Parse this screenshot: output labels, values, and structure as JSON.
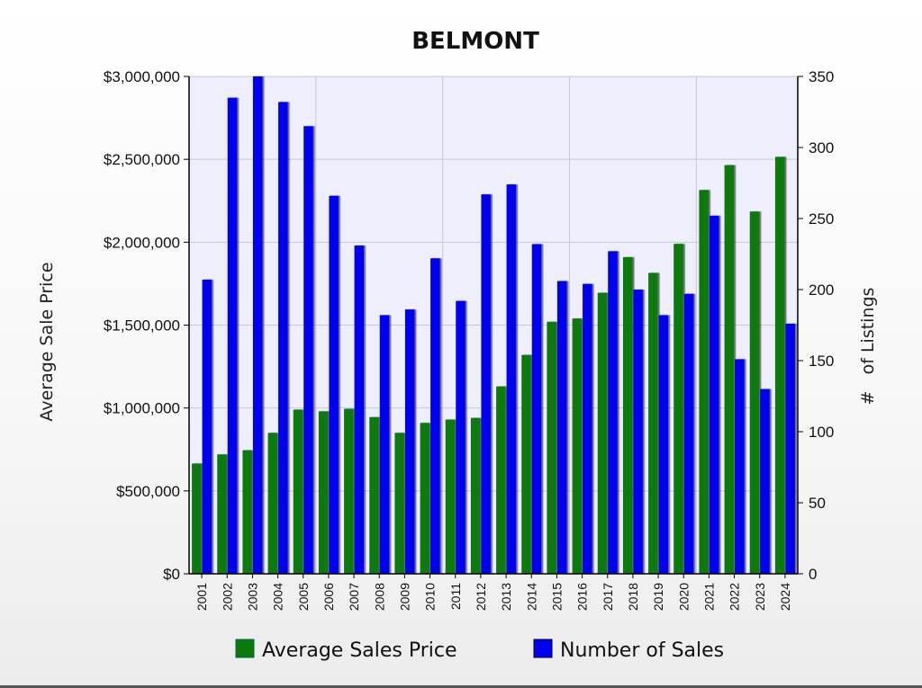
{
  "chart_data": {
    "type": "bar",
    "title": "BELMONT",
    "categories": [
      "2001",
      "2002",
      "2003",
      "2004",
      "2005",
      "2006",
      "2007",
      "2008",
      "2009",
      "2010",
      "2011",
      "2012",
      "2013",
      "2014",
      "2015",
      "2016",
      "2017",
      "2018",
      "2019",
      "2020",
      "2021",
      "2022",
      "2023",
      "2024"
    ],
    "series": [
      {
        "name": "Average Sales Price",
        "axis": "left",
        "color": "#0a7a0a",
        "values": [
          665000,
          720000,
          745000,
          850000,
          990000,
          980000,
          995000,
          945000,
          850000,
          910000,
          930000,
          940000,
          1130000,
          1320000,
          1520000,
          1540000,
          1695000,
          1910000,
          1815000,
          1990000,
          2315000,
          2465000,
          2185000,
          2515000
        ]
      },
      {
        "name": "Number of Sales",
        "axis": "right",
        "color": "#0000f0",
        "values": [
          207,
          335,
          350,
          332,
          315,
          266,
          231,
          182,
          186,
          222,
          192,
          267,
          274,
          232,
          206,
          204,
          227,
          200,
          182,
          197,
          252,
          151,
          130,
          176
        ]
      }
    ],
    "ylabel": "Average Sale Price",
    "y2label": "#   of Listings",
    "ylim": [
      0,
      3000000
    ],
    "y2lim": [
      0,
      350
    ],
    "yticks": [
      "$0",
      "$500,000",
      "$1,000,000",
      "$1,500,000",
      "$2,000,000",
      "$2,500,000",
      "$3,000,000"
    ],
    "y2ticks": [
      "0",
      "50",
      "100",
      "150",
      "200",
      "250",
      "300",
      "350"
    ],
    "grid": true,
    "legend": "bottom"
  },
  "colors": {
    "plot_background": "#eeeefc",
    "grid": "#c8c8d4"
  }
}
